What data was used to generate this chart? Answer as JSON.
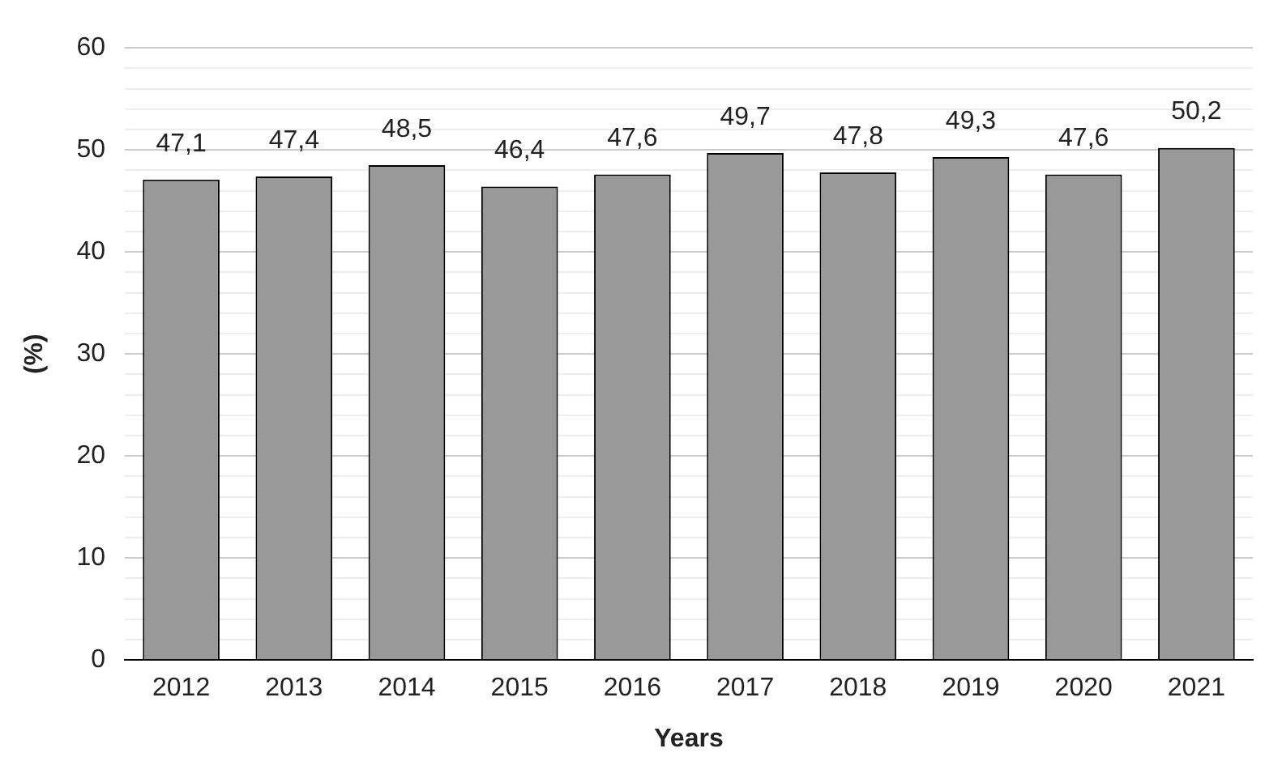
{
  "chart_data": {
    "type": "bar",
    "xlabel": "Years",
    "ylabel": "(%)",
    "categories": [
      "2012",
      "2013",
      "2014",
      "2015",
      "2016",
      "2017",
      "2018",
      "2019",
      "2020",
      "2021"
    ],
    "values": [
      47.1,
      47.4,
      48.5,
      46.4,
      47.6,
      49.7,
      47.8,
      49.3,
      47.6,
      50.2
    ],
    "value_labels": [
      "47,1",
      "47,4",
      "48,5",
      "46,4",
      "47,6",
      "49,7",
      "47,8",
      "49,3",
      "47,6",
      "50,2"
    ],
    "color": "#999999",
    "ylim": [
      0,
      60
    ],
    "yticks": [
      0,
      {
        "value": 2,
        "label": null
      },
      {
        "value": 4,
        "label": null
      },
      {
        "value": 6,
        "label": null
      },
      {
        "value": 8,
        "label": null
      },
      10,
      {
        "value": 12,
        "label": null
      },
      {
        "value": 14,
        "label": null
      },
      {
        "value": 16,
        "label": null
      },
      {
        "value": 18,
        "label": null
      },
      20,
      {
        "value": 22,
        "label": null
      },
      {
        "value": 24,
        "label": null
      },
      {
        "value": 26,
        "label": null
      },
      {
        "value": 28,
        "label": null
      },
      30,
      {
        "value": 32,
        "label": null
      },
      {
        "value": 34,
        "label": null
      },
      {
        "value": 36,
        "label": null
      },
      {
        "value": 38,
        "label": null
      },
      40,
      {
        "value": 42,
        "label": null
      },
      {
        "value": 44,
        "label": null
      },
      {
        "value": 46,
        "label": null
      },
      {
        "value": 48,
        "label": null
      },
      50,
      {
        "value": 52,
        "label": null
      },
      {
        "value": 54,
        "label": null
      },
      {
        "value": 56,
        "label": null
      },
      {
        "value": 58,
        "label": null
      },
      60
    ],
    "grid": "y"
  }
}
